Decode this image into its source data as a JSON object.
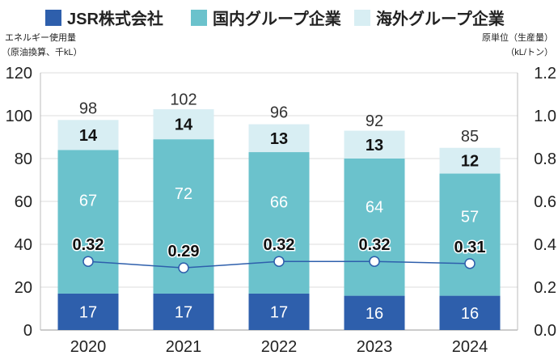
{
  "chart_data": {
    "type": "bar",
    "stacked": true,
    "categories": [
      "2020",
      "2021",
      "2022",
      "2023",
      "2024"
    ],
    "series": [
      {
        "name": "JSR株式会社",
        "values": [
          17,
          17,
          17,
          16,
          16
        ],
        "color": "#2e5fac"
      },
      {
        "name": "国内グループ企業",
        "values": [
          67,
          72,
          66,
          64,
          57
        ],
        "color": "#6bc2cc"
      },
      {
        "name": "海外グループ企業",
        "values": [
          14,
          14,
          13,
          13,
          12
        ],
        "color": "#d8eef3"
      }
    ],
    "totals": [
      98,
      102,
      96,
      92,
      85
    ],
    "line_series": {
      "values": [
        0.32,
        0.29,
        0.32,
        0.32,
        0.31
      ],
      "color": "#2e5fac",
      "axis": "right"
    },
    "ylabel_left": [
      "エネルギー使用量",
      "（原油換算、千kL）"
    ],
    "ylabel_right": [
      "原単位（生産量）",
      "（kL/トン）"
    ],
    "ylim_left": [
      0,
      120
    ],
    "yticks_left": [
      "0",
      "20",
      "40",
      "60",
      "80",
      "100",
      "120"
    ],
    "ylim_right": [
      0,
      1.2
    ],
    "yticks_right": [
      "0.0",
      "0.2",
      "0.4",
      "0.6",
      "0.8",
      "1.0",
      "1.2"
    ],
    "grid": true,
    "legend_placement": "top"
  }
}
